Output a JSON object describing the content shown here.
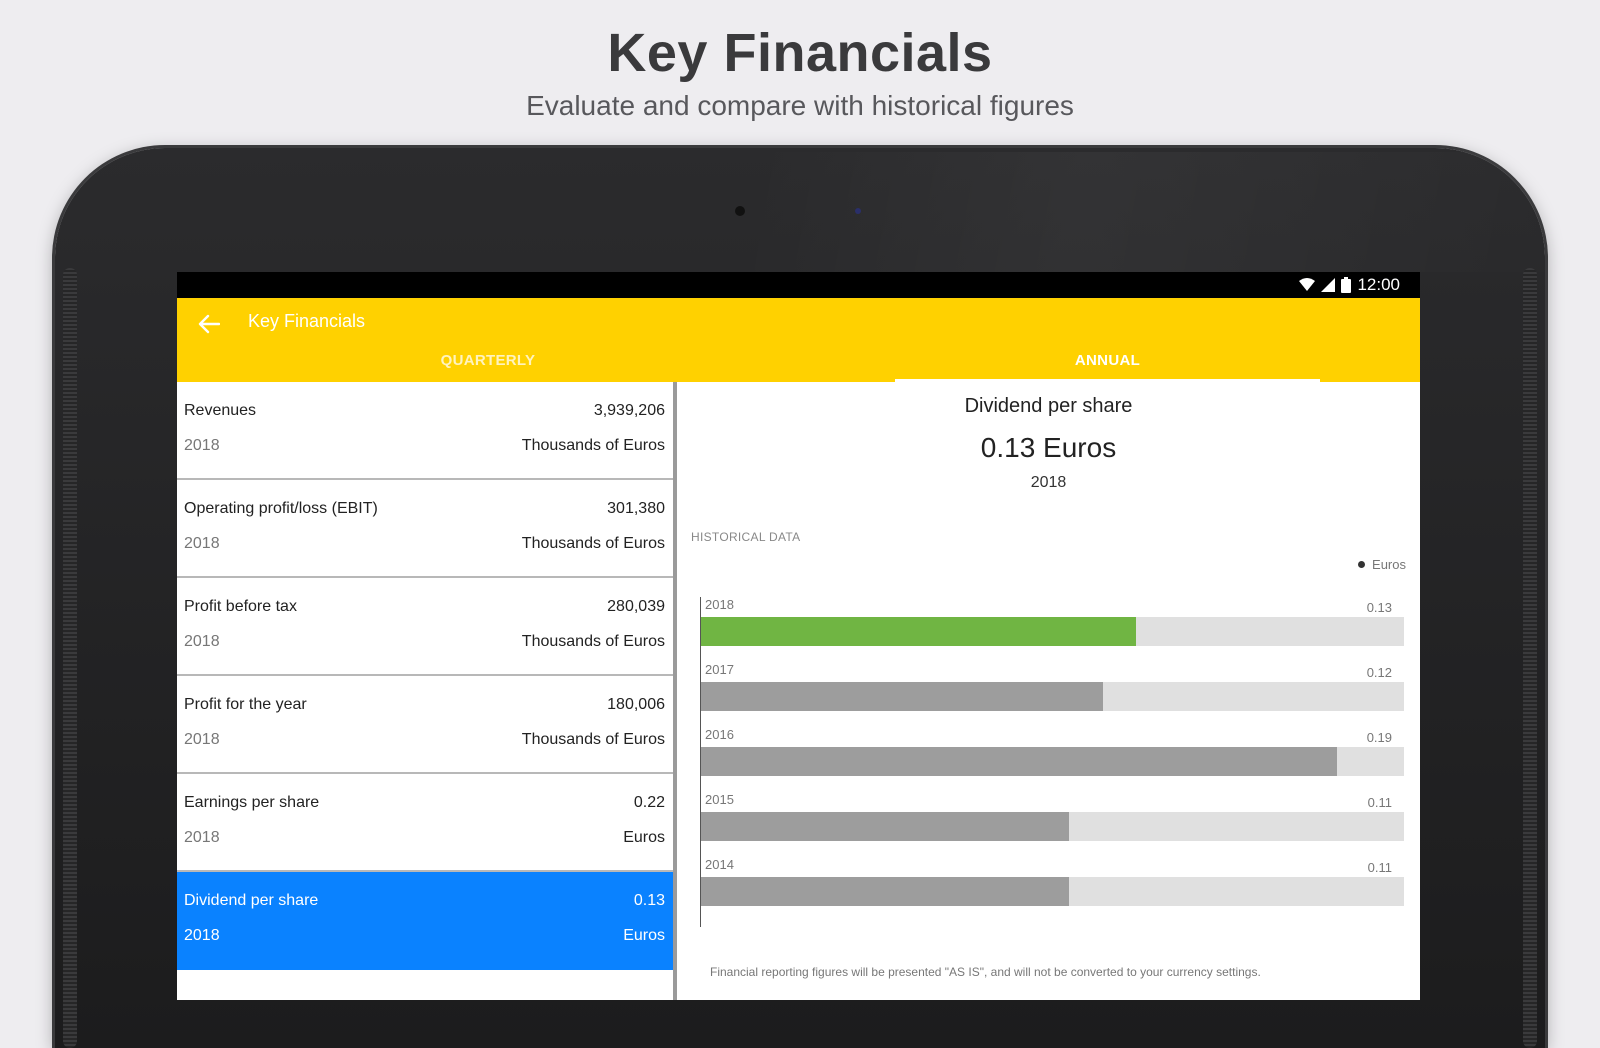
{
  "promo": {
    "title": "Key Financials",
    "subtitle": "Evaluate and compare with historical figures"
  },
  "status_bar": {
    "time": "12:00",
    "icons": [
      "wifi-icon",
      "signal-icon",
      "battery-icon"
    ]
  },
  "app_bar": {
    "title": "Key Financials",
    "back_icon": "back-arrow-icon",
    "color": "#ffd100",
    "tabs": [
      {
        "label": "QUARTERLY",
        "active": false
      },
      {
        "label": "ANNUAL",
        "active": true
      }
    ]
  },
  "list": {
    "items": [
      {
        "name": "Revenues",
        "value": "3,939,206",
        "year": "2018",
        "unit": "Thousands of Euros",
        "selected": false
      },
      {
        "name": "Operating profit/loss (EBIT)",
        "value": "301,380",
        "year": "2018",
        "unit": "Thousands of Euros",
        "selected": false
      },
      {
        "name": "Profit before tax",
        "value": "280,039",
        "year": "2018",
        "unit": "Thousands of Euros",
        "selected": false
      },
      {
        "name": "Profit for the year",
        "value": "180,006",
        "year": "2018",
        "unit": "Thousands of Euros",
        "selected": false
      },
      {
        "name": "Earnings per share",
        "value": "0.22",
        "year": "2018",
        "unit": "Euros",
        "selected": false
      },
      {
        "name": "Dividend per share",
        "value": "0.13",
        "year": "2018",
        "unit": "Euros",
        "selected": true
      }
    ],
    "selected_color": "#0a82ff"
  },
  "detail": {
    "title": "Dividend per share",
    "value": "0.13 Euros",
    "year": "2018",
    "historical_label": "HISTORICAL DATA",
    "legend": "Euros",
    "footnote": "Financial reporting figures will be presented \"AS IS\", and will not be converted to your currency settings."
  },
  "chart_data": {
    "type": "bar",
    "orientation": "horizontal",
    "categories": [
      "2018",
      "2017",
      "2016",
      "2015",
      "2014"
    ],
    "values": [
      0.13,
      0.12,
      0.19,
      0.11,
      0.11
    ],
    "value_labels": [
      "0.13",
      "0.12",
      "0.19",
      "0.11",
      "0.11"
    ],
    "series": [
      {
        "name": "Euros",
        "values": [
          0.13,
          0.12,
          0.19,
          0.11,
          0.11
        ]
      }
    ],
    "xlim": [
      0,
      0.21
    ],
    "legend_position": "top-right",
    "colors": {
      "current": "#70b543",
      "past": "#9d9d9d",
      "track": "#e0e0e0"
    }
  }
}
